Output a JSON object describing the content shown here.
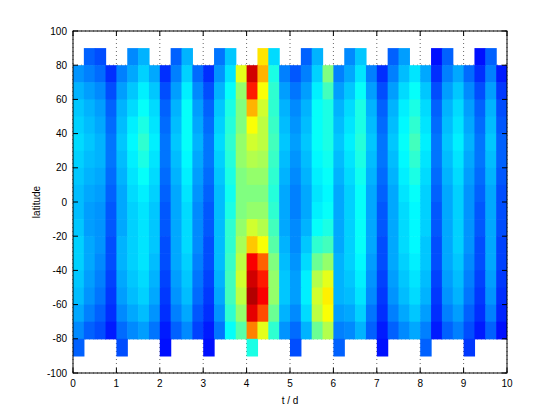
{
  "chart_data": {
    "type": "heatmap",
    "xlabel": "t / d",
    "ylabel": "latitude",
    "xlim": [
      0,
      10
    ],
    "ylim": [
      -100,
      100
    ],
    "xticks": [
      0,
      1,
      2,
      3,
      4,
      5,
      6,
      7,
      8,
      9,
      10
    ],
    "yticks": [
      -100,
      -80,
      -60,
      -40,
      -20,
      0,
      20,
      40,
      60,
      80,
      100
    ],
    "grid": true,
    "clim": [
      0,
      100
    ],
    "x_edges": [
      0,
      0.25,
      0.5,
      0.75,
      1,
      1.25,
      1.5,
      1.75,
      2,
      2.25,
      2.5,
      2.75,
      3,
      3.25,
      3.5,
      3.75,
      4,
      4.25,
      4.5,
      4.75,
      5,
      5.25,
      5.5,
      5.75,
      6,
      6.25,
      6.5,
      6.75,
      7,
      7.25,
      7.5,
      7.75,
      8,
      8.25,
      8.5,
      8.75,
      9,
      9.25,
      9.5,
      9.75,
      10
    ],
    "y_edges": [
      90,
      80,
      70,
      60,
      50,
      40,
      30,
      20,
      10,
      0,
      -10,
      -20,
      -30,
      -40,
      -50,
      -60,
      -70,
      -80,
      -90
    ],
    "cells": [
      [
        null,
        22,
        20,
        null,
        null,
        26,
        30,
        null,
        null,
        22,
        30,
        null,
        null,
        24,
        32,
        null,
        null,
        65,
        34,
        null,
        null,
        22,
        30,
        null,
        null,
        26,
        32,
        null,
        null,
        22,
        28,
        null,
        null,
        14,
        22,
        null,
        null,
        14,
        22,
        null
      ],
      [
        27,
        25,
        23,
        17,
        25,
        29,
        33,
        29,
        17,
        25,
        33,
        23,
        17,
        27,
        35,
        60,
        92,
        70,
        40,
        25,
        21,
        25,
        33,
        50,
        25,
        29,
        35,
        25,
        17,
        25,
        31,
        35,
        29,
        17,
        25,
        29,
        23,
        17,
        25,
        15
      ],
      [
        30,
        28,
        26,
        20,
        28,
        32,
        36,
        32,
        20,
        28,
        36,
        26,
        20,
        30,
        38,
        52,
        85,
        62,
        42,
        28,
        24,
        28,
        36,
        44,
        28,
        32,
        38,
        28,
        20,
        28,
        34,
        38,
        32,
        20,
        28,
        32,
        26,
        20,
        28,
        18
      ],
      [
        32,
        30,
        28,
        22,
        30,
        34,
        38,
        34,
        22,
        30,
        38,
        28,
        22,
        32,
        40,
        50,
        70,
        58,
        42,
        30,
        26,
        30,
        38,
        40,
        30,
        34,
        40,
        30,
        22,
        30,
        36,
        40,
        34,
        22,
        30,
        34,
        28,
        22,
        30,
        20
      ],
      [
        33,
        31,
        29,
        23,
        31,
        36,
        40,
        35,
        23,
        31,
        38,
        29,
        23,
        33,
        41,
        50,
        62,
        56,
        43,
        31,
        27,
        31,
        38,
        40,
        31,
        35,
        40,
        31,
        23,
        31,
        37,
        42,
        35,
        23,
        31,
        35,
        29,
        23,
        31,
        21
      ],
      [
        34,
        32,
        30,
        24,
        32,
        37,
        42,
        36,
        24,
        32,
        38,
        30,
        24,
        34,
        42,
        52,
        58,
        56,
        44,
        32,
        28,
        32,
        38,
        40,
        32,
        36,
        41,
        32,
        24,
        32,
        38,
        44,
        36,
        24,
        32,
        36,
        30,
        24,
        32,
        22
      ],
      [
        33,
        31,
        30,
        24,
        31,
        36,
        40,
        35,
        24,
        31,
        37,
        29,
        24,
        33,
        41,
        52,
        55,
        54,
        43,
        31,
        27,
        31,
        37,
        39,
        31,
        35,
        40,
        31,
        24,
        31,
        37,
        42,
        35,
        24,
        31,
        35,
        29,
        24,
        31,
        22
      ],
      [
        32,
        30,
        29,
        23,
        30,
        35,
        38,
        34,
        23,
        30,
        36,
        28,
        23,
        32,
        40,
        50,
        52,
        52,
        42,
        30,
        26,
        30,
        36,
        38,
        30,
        34,
        39,
        30,
        23,
        30,
        36,
        40,
        34,
        23,
        30,
        34,
        28,
        23,
        30,
        21
      ],
      [
        31,
        29,
        28,
        22,
        29,
        34,
        36,
        33,
        22,
        29,
        35,
        27,
        22,
        31,
        39,
        50,
        50,
        50,
        41,
        29,
        25,
        29,
        35,
        37,
        29,
        33,
        38,
        29,
        22,
        29,
        35,
        38,
        33,
        22,
        29,
        33,
        27,
        22,
        29,
        20
      ],
      [
        31,
        28,
        27,
        21,
        29,
        33,
        35,
        32,
        21,
        29,
        34,
        26,
        21,
        31,
        40,
        50,
        52,
        52,
        42,
        29,
        25,
        29,
        36,
        38,
        29,
        33,
        38,
        29,
        21,
        29,
        34,
        37,
        33,
        21,
        29,
        33,
        27,
        21,
        29,
        20
      ],
      [
        32,
        28,
        27,
        21,
        29,
        33,
        35,
        32,
        21,
        29,
        34,
        26,
        21,
        31,
        42,
        52,
        58,
        55,
        44,
        29,
        26,
        30,
        38,
        40,
        29,
        33,
        38,
        29,
        21,
        29,
        34,
        37,
        33,
        21,
        29,
        33,
        27,
        21,
        29,
        20
      ],
      [
        33,
        29,
        27,
        20,
        30,
        33,
        35,
        32,
        20,
        29,
        34,
        26,
        20,
        31,
        42,
        54,
        68,
        62,
        46,
        30,
        26,
        32,
        42,
        44,
        29,
        33,
        38,
        29,
        20,
        29,
        34,
        37,
        32,
        20,
        29,
        33,
        27,
        20,
        29,
        19
      ],
      [
        33,
        29,
        26,
        20,
        30,
        33,
        35,
        31,
        20,
        29,
        33,
        25,
        20,
        31,
        43,
        56,
        88,
        78,
        50,
        31,
        27,
        34,
        48,
        52,
        30,
        33,
        37,
        28,
        20,
        29,
        33,
        36,
        32,
        20,
        29,
        32,
        26,
        20,
        29,
        19
      ],
      [
        32,
        28,
        25,
        19,
        29,
        32,
        34,
        30,
        19,
        28,
        32,
        24,
        19,
        30,
        44,
        58,
        92,
        85,
        52,
        32,
        28,
        36,
        55,
        60,
        30,
        32,
        36,
        27,
        19,
        28,
        32,
        35,
        31,
        19,
        28,
        31,
        25,
        19,
        28,
        18
      ],
      [
        31,
        27,
        24,
        18,
        28,
        31,
        33,
        29,
        18,
        27,
        31,
        23,
        18,
        29,
        44,
        56,
        95,
        88,
        52,
        32,
        28,
        36,
        58,
        64,
        30,
        31,
        35,
        26,
        18,
        27,
        31,
        34,
        30,
        18,
        27,
        30,
        24,
        18,
        27,
        17
      ],
      [
        29,
        25,
        22,
        17,
        26,
        29,
        31,
        27,
        17,
        25,
        29,
        21,
        17,
        27,
        42,
        52,
        90,
        80,
        48,
        30,
        26,
        34,
        56,
        62,
        28,
        29,
        33,
        24,
        17,
        25,
        29,
        32,
        28,
        17,
        25,
        28,
        22,
        17,
        25,
        16
      ],
      [
        26,
        22,
        20,
        15,
        23,
        26,
        28,
        24,
        15,
        22,
        26,
        19,
        15,
        24,
        38,
        46,
        75,
        60,
        42,
        27,
        23,
        30,
        48,
        55,
        25,
        26,
        30,
        22,
        15,
        22,
        26,
        29,
        25,
        15,
        22,
        25,
        20,
        15,
        22,
        14
      ],
      [
        22,
        null,
        null,
        null,
        20,
        null,
        null,
        null,
        14,
        null,
        null,
        null,
        14,
        null,
        null,
        null,
        40,
        null,
        null,
        null,
        20,
        null,
        null,
        null,
        22,
        null,
        null,
        null,
        14,
        null,
        null,
        null,
        22,
        null,
        null,
        null,
        18,
        null,
        null,
        null
      ]
    ]
  }
}
